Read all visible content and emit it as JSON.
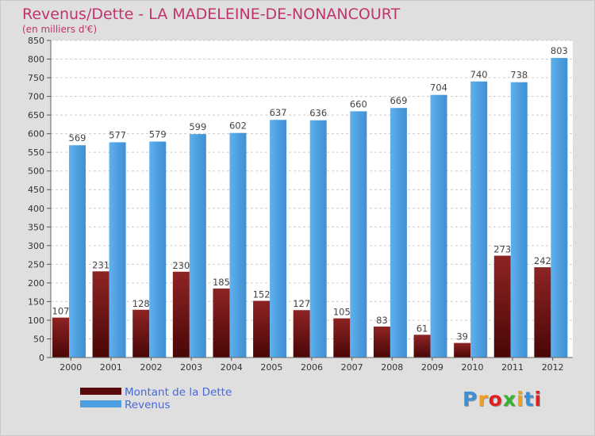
{
  "title": "Revenus/Dette - LA MADELEINE-DE-NONANCOURT",
  "subtitle": "(en milliers d'€)",
  "colors": {
    "dette": "#7a1414",
    "revenus": "#4d9fe0",
    "title": "#c0346b",
    "legend_text": "#4a67d6"
  },
  "legend": [
    {
      "label": "Montant de la Dette",
      "color": "#7a1414"
    },
    {
      "label": "Revenus",
      "color": "#4d9fe0"
    }
  ],
  "logo": {
    "text": "Proxiti",
    "letter_colors": [
      "#3a8fd6",
      "#f0a020",
      "#e02020",
      "#3ab030",
      "#f0a020",
      "#3a8fd6",
      "#e02020"
    ]
  },
  "chart_data": {
    "type": "bar",
    "categories": [
      "2000",
      "2001",
      "2002",
      "2003",
      "2004",
      "2005",
      "2006",
      "2007",
      "2008",
      "2009",
      "2010",
      "2011",
      "2012"
    ],
    "series": [
      {
        "name": "Montant de la Dette",
        "values": [
          107,
          231,
          128,
          230,
          185,
          152,
          127,
          105,
          83,
          61,
          39,
          273,
          242
        ]
      },
      {
        "name": "Revenus",
        "values": [
          569,
          577,
          579,
          599,
          602,
          637,
          636,
          660,
          669,
          704,
          740,
          738,
          803
        ]
      }
    ],
    "yticks": [
      0,
      50,
      100,
      150,
      200,
      250,
      300,
      350,
      400,
      450,
      500,
      550,
      600,
      650,
      700,
      750,
      800,
      850
    ],
    "ylim": [
      0,
      850
    ],
    "grid": true,
    "legend_position": "bottom-left"
  }
}
